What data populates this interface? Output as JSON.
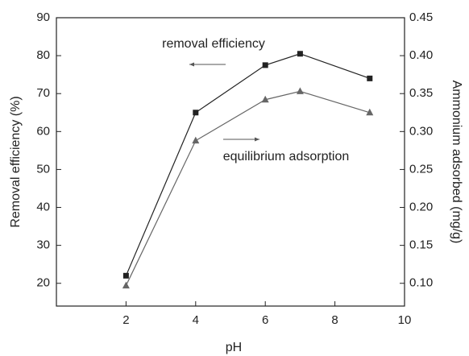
{
  "chart_data": {
    "type": "line",
    "x_label": "pH",
    "y_label": "Removal efficiency (%)",
    "y2_label": "Ammonium adsorbed (mg/g)",
    "xlim": [
      0,
      10
    ],
    "xticks": [
      2,
      4,
      6,
      8,
      10
    ],
    "ylim": [
      14,
      90
    ],
    "yticks": [
      20,
      30,
      40,
      50,
      60,
      70,
      80,
      90
    ],
    "y2lim": [
      0.07,
      0.45
    ],
    "y2ticks": [
      {
        "value": 0.1,
        "label": "0.10"
      },
      0.15,
      {
        "value": 0.2,
        "label": "0.20"
      },
      0.25,
      {
        "value": 0.3,
        "label": "0.30"
      },
      0.35,
      {
        "value": 0.4,
        "label": "0.40"
      },
      0.45
    ],
    "x": [
      2,
      4,
      6,
      7,
      9
    ],
    "series": [
      {
        "name": "removal efficiency",
        "color": "#222222",
        "marker": "square",
        "values": [
          22,
          65,
          77.5,
          80.5,
          74
        ]
      },
      {
        "name": "equilibrium adsorption",
        "color": "#666666",
        "marker": "triangle",
        "axis": "y2",
        "values": [
          0.097,
          0.288,
          0.342,
          0.353,
          0.325
        ]
      }
    ],
    "annotations": [
      {
        "text": "removal efficiency",
        "arrow": "left"
      },
      {
        "text": "equilibrium adsorption",
        "arrow": "right"
      }
    ]
  }
}
